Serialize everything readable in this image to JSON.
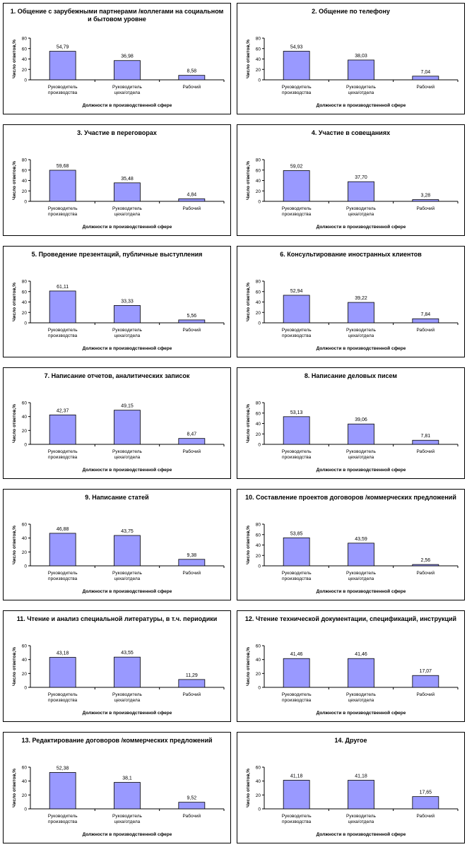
{
  "chart_data": [
    {
      "type": "bar",
      "title": "1. Общение с зарубежными партнерами /коллегами на социальном и бытовом уровне",
      "ylabel": "Число ответов,%",
      "xlabel": "Должности в производственной сфере",
      "categories": [
        "Руководитель производства",
        "Руководитель цеха/отдела",
        "Рабочий"
      ],
      "values": [
        54.79,
        36.98,
        8.58
      ],
      "value_labels": [
        "54,79",
        "36,98",
        "8,58"
      ],
      "ylim": [
        0,
        80
      ],
      "yticks": [
        0,
        20,
        40,
        60,
        80
      ]
    },
    {
      "type": "bar",
      "title": "2. Общение по телефону",
      "ylabel": "Число ответов,%",
      "xlabel": "Должности в производственной сфере",
      "categories": [
        "Руководитель производства",
        "Руководитель цеха/отдела",
        "Рабочий"
      ],
      "values": [
        54.93,
        38.03,
        7.04
      ],
      "value_labels": [
        "54,93",
        "38,03",
        "7,04"
      ],
      "ylim": [
        0,
        80
      ],
      "yticks": [
        0,
        20,
        40,
        60,
        80
      ]
    },
    {
      "type": "bar",
      "title": "3. Участие в переговорах",
      "ylabel": "Число ответов,%",
      "xlabel": "Должности в производственной сфере",
      "categories": [
        "Руководитель производства",
        "Руководитель цеха/отдела",
        "Рабочий"
      ],
      "values": [
        59.68,
        35.48,
        4.84
      ],
      "value_labels": [
        "59,68",
        "35,48",
        "4,84"
      ],
      "ylim": [
        0,
        80
      ],
      "yticks": [
        0,
        20,
        40,
        60,
        80
      ]
    },
    {
      "type": "bar",
      "title": "4. Участие в совещаниях",
      "ylabel": "Число ответов,%",
      "xlabel": "Должности в производственной сфере",
      "categories": [
        "Руководитель производства",
        "Руководитель цеха/отдела",
        "Рабочий"
      ],
      "values": [
        59.02,
        37.7,
        3.28
      ],
      "value_labels": [
        "59,02",
        "37,70",
        "3,28"
      ],
      "ylim": [
        0,
        80
      ],
      "yticks": [
        0,
        20,
        40,
        60,
        80
      ]
    },
    {
      "type": "bar",
      "title": "5. Проведение презентаций, публичные выступления",
      "ylabel": "Число ответов,%",
      "xlabel": "Должности в производственной сфере",
      "categories": [
        "Руководитель производства",
        "Руководитель цеха/отдела",
        "Рабочий"
      ],
      "values": [
        61.11,
        33.33,
        5.56
      ],
      "value_labels": [
        "61,11",
        "33,33",
        "5,56"
      ],
      "ylim": [
        0,
        80
      ],
      "yticks": [
        0,
        20,
        40,
        60,
        80
      ]
    },
    {
      "type": "bar",
      "title": "6. Консультирование иностранных клиентов",
      "ylabel": "Число ответов,%",
      "xlabel": "Должности в производственной сфере",
      "categories": [
        "Руководитель производства",
        "Руководитель цеха/отдела",
        "Рабочий"
      ],
      "values": [
        52.94,
        39.22,
        7.84
      ],
      "value_labels": [
        "52,94",
        "39,22",
        "7,84"
      ],
      "ylim": [
        0,
        80
      ],
      "yticks": [
        0,
        20,
        40,
        60,
        80
      ]
    },
    {
      "type": "bar",
      "title": "7. Написание отчетов, аналитических записок",
      "ylabel": "Число ответов,%",
      "xlabel": "Должности в производственной сфере",
      "categories": [
        "Руководитель производства",
        "Руководитель цеха/отдела",
        "Рабочий"
      ],
      "values": [
        42.37,
        49.15,
        8.47
      ],
      "value_labels": [
        "42,37",
        "49,15",
        "8,47"
      ],
      "ylim": [
        0,
        60
      ],
      "yticks": [
        0,
        20,
        40,
        60
      ]
    },
    {
      "type": "bar",
      "title": "8. Написание деловых писем",
      "ylabel": "Число ответов,%",
      "xlabel": "Должности в производственной сфере",
      "categories": [
        "Руководитель производства",
        "Руководитель цеха/отдела",
        "Рабочий"
      ],
      "values": [
        53.13,
        39.06,
        7.81
      ],
      "value_labels": [
        "53,13",
        "39,06",
        "7,81"
      ],
      "ylim": [
        0,
        80
      ],
      "yticks": [
        0,
        20,
        40,
        60,
        80
      ]
    },
    {
      "type": "bar",
      "title": "9. Написание статей",
      "ylabel": "Число ответов,%",
      "xlabel": "Должности в производственной сфере",
      "categories": [
        "Руководитель производства",
        "Руководитель цеха/отдела",
        "Рабочий"
      ],
      "values": [
        46.88,
        43.75,
        9.38
      ],
      "value_labels": [
        "46,88",
        "43,75",
        "9,38"
      ],
      "ylim": [
        0,
        60
      ],
      "yticks": [
        0,
        20,
        40,
        60
      ]
    },
    {
      "type": "bar",
      "title": "10. Составление проектов договоров /коммерческих предложений",
      "ylabel": "Число ответов,%",
      "xlabel": "Должности в производственной сфере",
      "categories": [
        "Руководитель производства",
        "Руководитель цеха/отдела",
        "Рабочий"
      ],
      "values": [
        53.85,
        43.59,
        2.56
      ],
      "value_labels": [
        "53,85",
        "43,59",
        "2,56"
      ],
      "ylim": [
        0,
        80
      ],
      "yticks": [
        0,
        20,
        40,
        60,
        80
      ]
    },
    {
      "type": "bar",
      "title": "11. Чтение и анализ специальной литературы, в т.ч. периодики",
      "ylabel": "Число ответов,%",
      "xlabel": "Должности в производственной сфере",
      "categories": [
        "Руководитель производства",
        "Руководитель цеха/отдела",
        "Рабочий"
      ],
      "values": [
        43.18,
        43.55,
        11.29
      ],
      "value_labels": [
        "43,18",
        "43,55",
        "11,29"
      ],
      "ylim": [
        0,
        60
      ],
      "yticks": [
        0,
        20,
        40,
        60
      ]
    },
    {
      "type": "bar",
      "title": "12. Чтение технической документации, спецификаций, инструкций",
      "ylabel": "Число ответов,%",
      "xlabel": "Должности в производственной сфере",
      "categories": [
        "Руководитель производства",
        "Руководитель цеха/отдела",
        "Рабочий"
      ],
      "values": [
        41.46,
        41.46,
        17.07
      ],
      "value_labels": [
        "41,46",
        "41,46",
        "17,07"
      ],
      "ylim": [
        0,
        60
      ],
      "yticks": [
        0,
        20,
        40,
        60
      ]
    },
    {
      "type": "bar",
      "title": "13. Редактирование договоров /коммерческих предложений",
      "ylabel": "Число ответов,%",
      "xlabel": "Должности в производственной сфере",
      "categories": [
        "Руководитель производства",
        "Руководитель цеха/отдела",
        "Рабочий"
      ],
      "values": [
        52.38,
        38.1,
        9.52
      ],
      "value_labels": [
        "52,38",
        "38,1",
        "9,52"
      ],
      "ylim": [
        0,
        60
      ],
      "yticks": [
        0,
        20,
        40,
        60
      ]
    },
    {
      "type": "bar",
      "title": "14. Другое",
      "ylabel": "Число ответов,%",
      "xlabel": "Должности в производственной сфере",
      "categories": [
        "Руководитель производства",
        "Руководитель цеха/отдела",
        "Рабочий"
      ],
      "values": [
        41.18,
        41.18,
        17.65
      ],
      "value_labels": [
        "41,18",
        "41,18",
        "17,65"
      ],
      "ylim": [
        0,
        60
      ],
      "yticks": [
        0,
        20,
        40,
        60
      ]
    }
  ],
  "colors": {
    "bar_fill": "#9999FF",
    "bar_stroke": "#000000",
    "frame": "#000000",
    "background": "#FFFFFF"
  }
}
